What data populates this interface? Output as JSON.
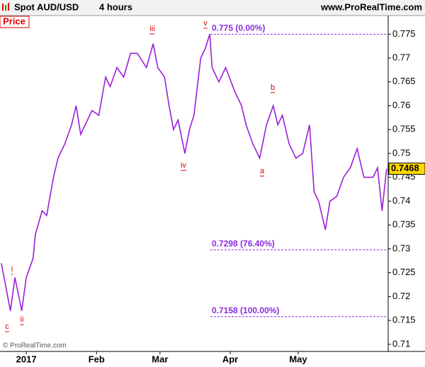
{
  "chart_data": {
    "type": "line",
    "title": "Spot AUD/USD",
    "subtitle": "4 hours",
    "source": "www.ProRealTime.com",
    "panel_label": "Price",
    "copyright": "© ProRealTime.com",
    "series": [
      {
        "name": "Price",
        "color": "#9b1fd6",
        "x": [
          -11,
          -9,
          -7,
          -5,
          -2,
          0,
          3,
          4,
          7,
          9,
          12,
          14,
          17,
          20,
          22,
          24,
          27,
          29,
          32,
          35,
          37,
          40,
          43,
          46,
          49,
          53,
          56,
          58,
          61,
          63,
          65,
          67,
          70,
          72,
          74,
          77,
          79,
          81,
          82,
          85,
          88,
          92,
          95,
          97,
          100,
          103,
          106,
          109,
          111,
          113,
          116,
          119,
          122,
          125,
          127,
          129,
          132,
          134,
          137,
          140,
          143,
          146,
          149,
          153,
          155,
          157,
          159
        ],
        "values": [
          0.727,
          0.722,
          0.717,
          0.724,
          0.717,
          0.724,
          0.728,
          0.733,
          0.738,
          0.737,
          0.745,
          0.749,
          0.752,
          0.756,
          0.76,
          0.754,
          0.757,
          0.759,
          0.758,
          0.766,
          0.764,
          0.768,
          0.766,
          0.771,
          0.771,
          0.768,
          0.773,
          0.768,
          0.766,
          0.76,
          0.755,
          0.757,
          0.75,
          0.755,
          0.758,
          0.77,
          0.772,
          0.775,
          0.768,
          0.765,
          0.768,
          0.763,
          0.76,
          0.756,
          0.752,
          0.749,
          0.756,
          0.76,
          0.756,
          0.758,
          0.752,
          0.749,
          0.75,
          0.756,
          0.742,
          0.74,
          0.734,
          0.74,
          0.741,
          0.745,
          0.747,
          0.751,
          0.745,
          0.745,
          0.747,
          0.738,
          0.7468
        ]
      }
    ],
    "xlim": [
      -11.6,
      159.7
    ],
    "xticks": [
      {
        "value": 0,
        "label": "2017"
      },
      {
        "value": 31,
        "label": "Feb"
      },
      {
        "value": 59,
        "label": "Mar"
      },
      {
        "value": 90,
        "label": "Apr"
      },
      {
        "value": 120,
        "label": "May"
      }
    ],
    "ylim": [
      0.7085,
      0.7789
    ],
    "yticks": [
      0.71,
      0.715,
      0.72,
      0.725,
      0.73,
      0.735,
      0.74,
      0.745,
      0.75,
      0.755,
      0.76,
      0.765,
      0.77,
      0.775
    ],
    "levels": [
      {
        "value": 0.775,
        "label": "0.775 (0.00%)"
      },
      {
        "value": 0.7298,
        "label": "0.7298 (76.40%)"
      },
      {
        "value": 0.7158,
        "label": "0.7158 (100.00%)"
      }
    ],
    "annotations": [
      "i",
      "ii",
      "iii",
      "iv",
      "v",
      "a",
      "b",
      "c"
    ]
  }
}
